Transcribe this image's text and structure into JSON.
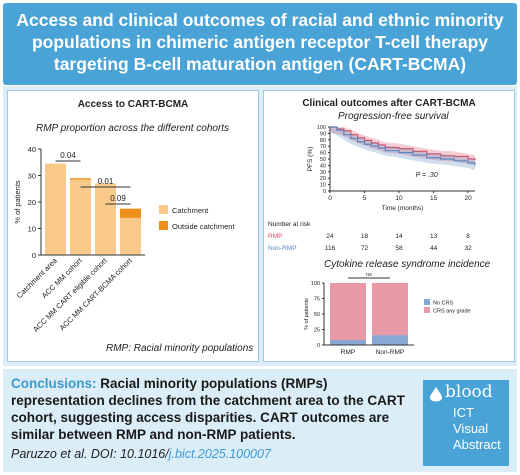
{
  "header": {
    "title": "Access and clinical outcomes of racial and ethnic minority populations in chimeric antigen receptor T-cell therapy targeting B-cell maturation antigen (CART-BCMA)"
  },
  "left_panel": {
    "title": "Access to CART-BCMA",
    "subtitle": "RMP proportion across the different cohorts",
    "footnote": "RMP: Racial minority populations",
    "colors": {
      "catchment": "#f8c98a",
      "outside": "#ec8f1e"
    }
  },
  "right_panel": {
    "title": "Clinical outcomes after CART-BCMA",
    "pfs_subtitle": "Progression-free survival",
    "crs_subtitle": "Cytokine release syndrome incidence",
    "risk_title": "Number at risk",
    "colors": {
      "rmp": "#d64f66",
      "nonrmp": "#5a87c0",
      "crs_any": "#e79aa5",
      "no_crs": "#87a8d2"
    }
  },
  "conclusions": {
    "label": "Conclusions:",
    "text": "Racial minority populations (RMPs) representation declines from the catchment area to the CART cohort, suggesting access disparities. CART outcomes are similar between RMP and non-RMP patients."
  },
  "citation": {
    "text": "Paruzzo et al. DOI: 10.1016/",
    "link": "j.bict.2025.100007"
  },
  "badge": {
    "logo": "blood",
    "line1": "ICT",
    "line2": "Visual",
    "line3": "Abstract"
  },
  "chart_data": [
    {
      "type": "bar",
      "subtitle": "RMP proportion across the different cohorts",
      "categories": [
        "Catchment area",
        "ACC MM cohort",
        "ACC MM CART eligible cohort",
        "ACC MM CART-BCMA cohort"
      ],
      "series": [
        {
          "name": "Catchment",
          "values": [
            34.5,
            28.5,
            27,
            14
          ]
        },
        {
          "name": "Outside catchment",
          "values": [
            0,
            0.5,
            0,
            3.5
          ]
        }
      ],
      "ylabel": "% of patients",
      "ylim": [
        0,
        40
      ],
      "yticks": [
        0,
        10,
        20,
        30,
        40
      ],
      "annotations": [
        {
          "from": "Catchment area",
          "to": "ACC MM cohort",
          "text": "0.04"
        },
        {
          "from": "ACC MM cohort",
          "to": "ACC MM CART-BCMA cohort",
          "text": "0.01"
        },
        {
          "from": "ACC MM CART eligible cohort",
          "to": "ACC MM CART-BCMA cohort",
          "text": "0.09"
        }
      ],
      "legend": "right"
    },
    {
      "type": "line",
      "subtitle": "Progression-free survival",
      "xlabel": "Time (months)",
      "ylabel": "PFS (%)",
      "xlim": [
        0,
        21
      ],
      "ylim": [
        0,
        100
      ],
      "xticks": [
        0,
        5,
        10,
        15,
        20
      ],
      "yticks": [
        0,
        10,
        20,
        30,
        40,
        50,
        60,
        70,
        80,
        90,
        100
      ],
      "annotation": "P = .30",
      "series": [
        {
          "name": "RMP",
          "x": [
            0,
            1,
            2,
            3,
            4,
            5,
            6,
            7,
            8,
            10,
            12,
            14,
            16,
            18,
            20,
            21
          ],
          "y": [
            100,
            97,
            94,
            88,
            83,
            79,
            75,
            72,
            68,
            66,
            62,
            58,
            55,
            54,
            50,
            48
          ]
        },
        {
          "name": "Non-RMP",
          "x": [
            0,
            1,
            2,
            3,
            4,
            5,
            6,
            7,
            8,
            10,
            12,
            14,
            16,
            18,
            20,
            21
          ],
          "y": [
            100,
            95,
            88,
            82,
            77,
            73,
            70,
            67,
            63,
            60,
            56,
            52,
            50,
            47,
            44,
            40
          ]
        }
      ],
      "risk_table": {
        "title": "Number at risk",
        "rows": [
          {
            "label": "RMP",
            "values": [
              24,
              18,
              14,
              13,
              8
            ]
          },
          {
            "label": "Non-RMP",
            "values": [
              116,
              72,
              58,
              44,
              32
            ]
          }
        ]
      }
    },
    {
      "type": "bar",
      "subtitle": "Cytokine release syndrome incidence",
      "categories": [
        "RMP",
        "Non-RMP"
      ],
      "series": [
        {
          "name": "No CRS",
          "values": [
            8,
            16
          ]
        },
        {
          "name": "CRS any grade",
          "values": [
            92,
            84
          ]
        }
      ],
      "ylabel": "% of patients",
      "ylim": [
        0,
        100
      ],
      "yticks": [
        0,
        25,
        50,
        75,
        100
      ],
      "annotation": "ns",
      "legend": "right"
    }
  ]
}
